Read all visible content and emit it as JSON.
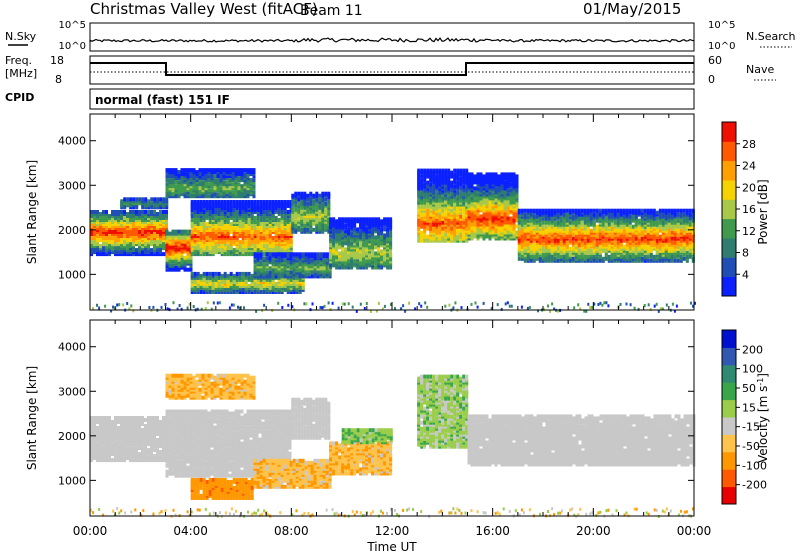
{
  "header": {
    "title": "Christmas Valley West (fitACF)",
    "beam": "Beam 11",
    "date": "01/May/2015"
  },
  "nsky_panel": {
    "left_label": "N.Sky",
    "left_ticks": [
      "10^5",
      "10^0"
    ],
    "right_label": "N.Search",
    "right_ticks": [
      "10^5",
      "10^0"
    ]
  },
  "freq_panel": {
    "left_label_1": "Freq.",
    "left_label_2": "[MHz]",
    "left_ticks": [
      "18",
      "8"
    ],
    "right_label": "Nave",
    "right_ticks": [
      "60",
      "0"
    ]
  },
  "cpid_panel": {
    "label": "CPID",
    "value": "normal (fast) 151 IF"
  },
  "colors": {
    "power": [
      "#0a20ff",
      "#1f4fb4",
      "#2f7d6e",
      "#3f9a4e",
      "#a8c84a",
      "#f5d200",
      "#ff9f00",
      "#ff5a00",
      "#ee1000"
    ],
    "velocity": [
      "#e80000",
      "#ff5a00",
      "#ff9800",
      "#ffc24a",
      "#c8c8c8",
      "#9acd4a",
      "#3aa64a",
      "#2f8a72",
      "#3058b0",
      "#0010d0"
    ]
  },
  "chart_data": [
    {
      "type": "heatmap",
      "name_key": "power",
      "xlabel": "",
      "ylabel": "Slant Range [km]",
      "xlim": [
        0,
        24
      ],
      "ylim": [
        200,
        4600
      ],
      "yticks": [
        "4000",
        "3000",
        "2000",
        "1000"
      ],
      "yvals": [
        4000,
        3000,
        2000,
        1000
      ],
      "colorbar_label": "Power [dB]",
      "colorbar_ticks": [
        "28",
        "24",
        "20",
        "16",
        "12",
        "8",
        "4"
      ],
      "colorbar_range": [
        0,
        32
      ],
      "bands": [
        {
          "t0": 0.0,
          "t1": 3.0,
          "lo": 1500,
          "hi": 2450,
          "core": 2000,
          "strength": 0.85
        },
        {
          "t0": 1.2,
          "t1": 3.0,
          "lo": 2550,
          "hi": 2750,
          "core": 2650,
          "strength": 0.25
        },
        {
          "t0": 3.0,
          "t1": 4.0,
          "lo": 1150,
          "hi": 2050,
          "core": 1650,
          "strength": 0.9
        },
        {
          "t0": 4.0,
          "t1": 8.0,
          "lo": 1500,
          "hi": 2700,
          "core": 1900,
          "strength": 0.75
        },
        {
          "t0": 8.0,
          "t1": 9.5,
          "lo": 2000,
          "hi": 2900,
          "core": 2350,
          "strength": 0.45
        },
        {
          "t0": 3.0,
          "t1": 6.5,
          "lo": 2800,
          "hi": 3400,
          "core": 3000,
          "strength": 0.35
        },
        {
          "t0": 4.0,
          "t1": 8.5,
          "lo": 650,
          "hi": 1100,
          "core": 850,
          "strength": 0.55
        },
        {
          "t0": 6.5,
          "t1": 9.5,
          "lo": 1000,
          "hi": 1500,
          "core": 1200,
          "strength": 0.35
        },
        {
          "t0": 9.5,
          "t1": 12.0,
          "lo": 1200,
          "hi": 2300,
          "core": 1550,
          "strength": 0.45
        },
        {
          "t0": 13.0,
          "t1": 15.0,
          "lo": 1800,
          "hi": 3400,
          "core": 2200,
          "strength": 0.75
        },
        {
          "t0": 15.0,
          "t1": 17.0,
          "lo": 1850,
          "hi": 3300,
          "core": 2300,
          "strength": 0.8
        },
        {
          "t0": 17.0,
          "t1": 24.0,
          "lo": 1350,
          "hi": 2500,
          "core": 1850,
          "strength": 0.8
        }
      ],
      "ground_scatter_range": [
        200,
        400
      ]
    },
    {
      "type": "heatmap",
      "name_key": "velocity",
      "xlabel": "Time UT",
      "ylabel": "Slant Range [km]",
      "xlim": [
        0,
        24
      ],
      "ylim": [
        200,
        4600
      ],
      "xticks": [
        "00:00",
        "04:00",
        "08:00",
        "12:00",
        "16:00",
        "20:00",
        "00:00"
      ],
      "xvals": [
        0,
        4,
        8,
        12,
        16,
        20,
        24
      ],
      "yticks": [
        "4000",
        "3000",
        "2000",
        "1000"
      ],
      "yvals": [
        4000,
        3000,
        2000,
        1000
      ],
      "colorbar_label": "Velocity [m s^-1]",
      "colorbar_ticks": [
        "200",
        "100",
        "50",
        "15",
        "-15",
        "-50",
        "-100",
        "-200"
      ],
      "colorbar_range": [
        -250,
        250
      ],
      "bands": [
        {
          "t0": 0.0,
          "t1": 3.0,
          "lo": 1500,
          "hi": 2450,
          "v": 0
        },
        {
          "t0": 3.0,
          "t1": 8.0,
          "lo": 1600,
          "hi": 2600,
          "v": 0
        },
        {
          "t0": 3.0,
          "t1": 8.0,
          "lo": 1150,
          "hi": 1600,
          "v": 0
        },
        {
          "t0": 8.0,
          "t1": 9.5,
          "lo": 2000,
          "hi": 2900,
          "v": 0
        },
        {
          "t0": 3.0,
          "t1": 6.5,
          "lo": 2900,
          "hi": 3400,
          "v": -40
        },
        {
          "t0": 4.0,
          "t1": 6.5,
          "lo": 650,
          "hi": 1100,
          "v": -80
        },
        {
          "t0": 6.5,
          "t1": 9.5,
          "lo": 900,
          "hi": 1500,
          "v": -40
        },
        {
          "t0": 9.5,
          "t1": 12.0,
          "lo": 1200,
          "hi": 1900,
          "v": -40
        },
        {
          "t0": 10.0,
          "t1": 12.0,
          "lo": 1900,
          "hi": 2200,
          "v": 40
        },
        {
          "t0": 13.0,
          "t1": 15.0,
          "lo": 1800,
          "hi": 3400,
          "v": 30
        },
        {
          "t0": 15.0,
          "t1": 24.0,
          "lo": 1400,
          "hi": 2500,
          "v": 0
        }
      ]
    }
  ]
}
